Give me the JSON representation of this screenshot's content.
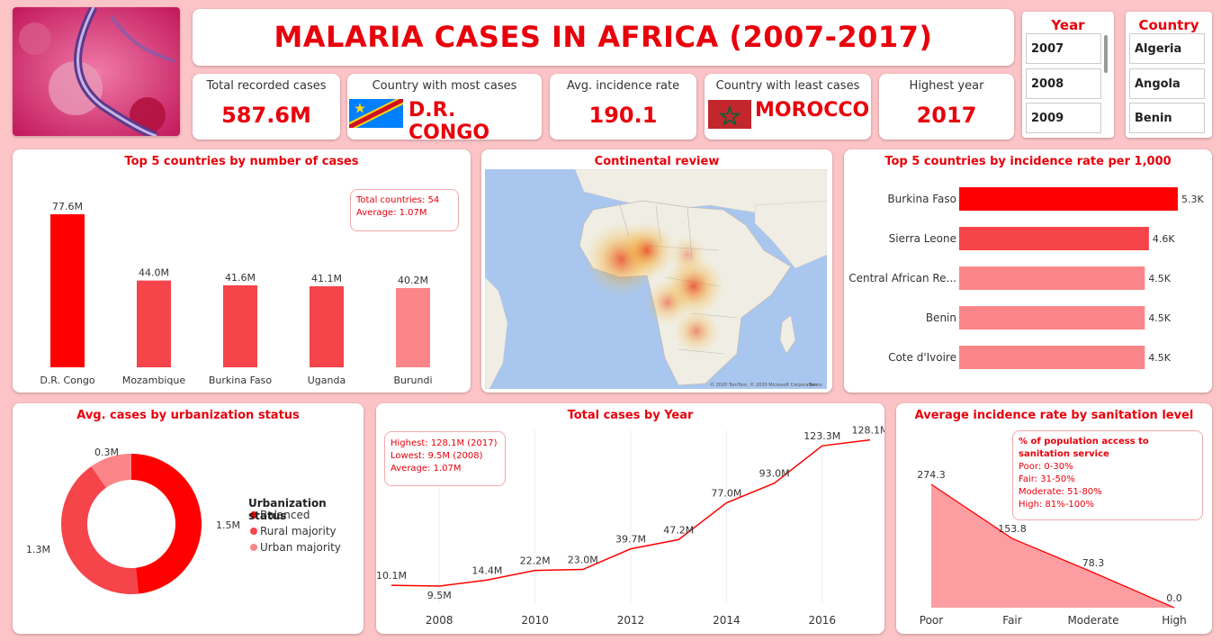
{
  "header": {
    "title": "MALARIA CASES IN AFRICA (2007-2017)"
  },
  "colors": {
    "primary": "#ff0000",
    "secondary": "#f5444a",
    "light": "#fb8589",
    "background": "#fcc4c6"
  },
  "kpis": {
    "total": {
      "label": "Total recorded cases",
      "value": "587.6M"
    },
    "most": {
      "label": "Country with most cases",
      "value": "D.R. CONGO",
      "flag": "drc-flag-icon"
    },
    "avg": {
      "label": "Avg. incidence rate",
      "value": "190.1"
    },
    "least": {
      "label": "Country with least cases",
      "value": "MOROCCO",
      "flag": "morocco-flag-icon"
    },
    "highest": {
      "label": "Highest year",
      "value": "2017"
    }
  },
  "slicers": {
    "year": {
      "label": "Year",
      "items": [
        "2007",
        "2008",
        "2009"
      ]
    },
    "country": {
      "label": "Country",
      "items": [
        "Algeria",
        "Angola",
        "Benin"
      ]
    }
  },
  "top5_cases": {
    "title": "Top 5 countries by number of cases",
    "note": {
      "line1": "Total countries: 54",
      "line2": "Average: 1.07M"
    }
  },
  "map": {
    "title": "Continental review",
    "attribution": "© 2020 TomTom, © 2020 Microsoft Corporation",
    "attribution2": "Terms"
  },
  "top5_incidence": {
    "title": "Top 5 countries by incidence rate per 1,000"
  },
  "urbanization": {
    "title": "Avg. cases by urbanization status",
    "legend_title": "Urbanization status"
  },
  "yearly": {
    "title": "Total cases by Year",
    "note": {
      "line1": "Highest: 128.1M (2017)",
      "line2": "Lowest: 9.5M (2008)",
      "line3": "Average: 1.07M"
    }
  },
  "sanitation": {
    "title": "Average incidence rate by sanitation level",
    "note": {
      "title": "% of population access to sanitation service",
      "poor": "Poor: 0-30%",
      "fair": "Fair: 31-50%",
      "moderate": "Moderate: 51-80%",
      "high": "High: 81%-100%"
    }
  },
  "chart_data": [
    {
      "type": "bar",
      "title": "Top 5 countries by number of cases",
      "categories": [
        "D.R. Congo",
        "Mozambique",
        "Burkina Faso",
        "Uganda",
        "Burundi"
      ],
      "values": [
        77.6,
        44.0,
        41.6,
        41.1,
        40.2
      ],
      "labels": [
        "77.6M",
        "44.0M",
        "41.6M",
        "41.1M",
        "40.2M"
      ]
    },
    {
      "type": "bar",
      "orientation": "horizontal",
      "title": "Top 5 countries by incidence rate per 1,000",
      "categories": [
        "Burkina Faso",
        "Sierra Leone",
        "Central African Re...",
        "Benin",
        "Cote d'Ivoire"
      ],
      "values": [
        5300,
        4600,
        4500,
        4500,
        4500
      ],
      "labels": [
        "5.3K",
        "4.6K",
        "4.5K",
        "4.5K",
        "4.5K"
      ]
    },
    {
      "type": "pie",
      "subtype": "donut",
      "title": "Avg. cases by urbanization status",
      "categories": [
        "Balanced",
        "Rural majority",
        "Urban majority"
      ],
      "values": [
        1.5,
        1.3,
        0.3
      ],
      "labels": [
        "1.5M",
        "1.3M",
        "0.3M"
      ]
    },
    {
      "type": "line",
      "title": "Total cases by Year",
      "x": [
        2007,
        2008,
        2009,
        2010,
        2011,
        2012,
        2013,
        2014,
        2015,
        2016,
        2017
      ],
      "values": [
        10.1,
        9.5,
        14.4,
        22.2,
        23.0,
        39.7,
        47.2,
        77.0,
        93.0,
        123.3,
        128.1
      ],
      "labels": [
        "10.1M",
        "9.5M",
        "14.4M",
        "22.2M",
        "23.0M",
        "39.7M",
        "47.2M",
        "77.0M",
        "93.0M",
        "123.3M",
        "128.1M"
      ],
      "xticks": [
        "2008",
        "2010",
        "2012",
        "2014",
        "2016"
      ]
    },
    {
      "type": "area",
      "title": "Average incidence rate by sanitation level",
      "categories": [
        "Poor",
        "Fair",
        "Moderate",
        "High"
      ],
      "values": [
        274.3,
        153.8,
        78.3,
        0.0
      ],
      "labels": [
        "274.3",
        "153.8",
        "78.3",
        "0.0"
      ]
    }
  ]
}
